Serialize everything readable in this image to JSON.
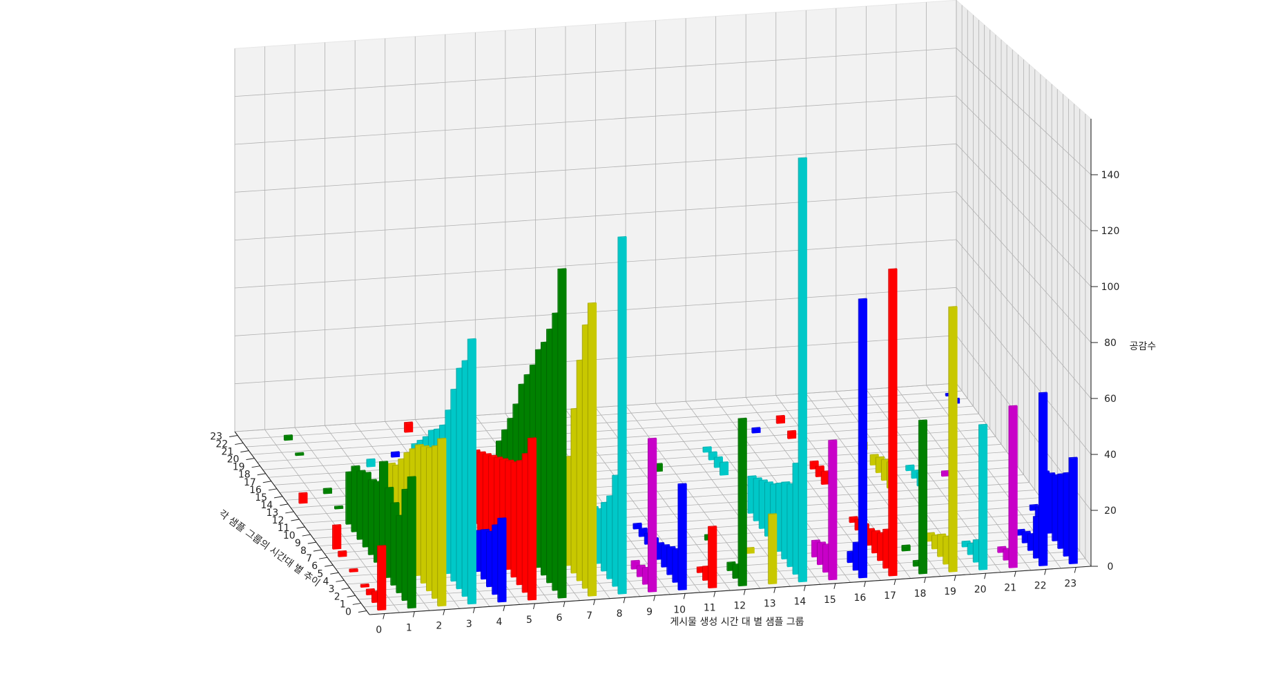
{
  "chart_data": {
    "type": "bar3d",
    "title": "",
    "xlabel": "게시물 생성 시간 대 별 샘플 그룹",
    "ylabel": "각 샘플 그룹의 시간대 별 추이",
    "zlabel": "공감수",
    "x_ticks": [
      "0",
      "1",
      "2",
      "3",
      "4",
      "5",
      "6",
      "7",
      "8",
      "9",
      "10",
      "11",
      "12",
      "13",
      "14",
      "15",
      "16",
      "17",
      "18",
      "19",
      "20",
      "21",
      "22",
      "23"
    ],
    "y_ticks": [
      "0",
      "1",
      "2",
      "3",
      "4",
      "5",
      "6",
      "7",
      "8",
      "9",
      "10",
      "11",
      "12",
      "13",
      "14",
      "15",
      "16",
      "17",
      "18",
      "19",
      "20",
      "21",
      "22",
      "23"
    ],
    "z_ticks": [
      "0",
      "20",
      "40",
      "60",
      "80",
      "100",
      "120",
      "140"
    ],
    "zlim": [
      0,
      160
    ],
    "grid": true,
    "series_colors": [
      "#ff0000",
      "#008000",
      "#c8c800",
      "#00c8c8",
      "#0000ff",
      "#c800c8"
    ],
    "series": [
      {
        "x": 0,
        "color": "#ff0000",
        "values": [
          23,
          4,
          2,
          1,
          0,
          1,
          0,
          2,
          9,
          0,
          0,
          0,
          0,
          0,
          4,
          0,
          0,
          0,
          0,
          0,
          0,
          0,
          0,
          0
        ]
      },
      {
        "x": 1,
        "color": "#008000",
        "values": [
          47,
          40,
          28,
          30,
          33,
          40,
          30,
          28,
          28,
          26,
          25,
          20,
          0,
          1,
          0,
          2,
          0,
          0,
          0,
          0,
          1,
          0,
          2,
          0
        ]
      },
      {
        "x": 2,
        "color": "#c8c800",
        "values": [
          60,
          55,
          52,
          50,
          48,
          44,
          40,
          35,
          30,
          28,
          8,
          6,
          4,
          3,
          2,
          0,
          0,
          0,
          0,
          0,
          0,
          0,
          0,
          0
        ]
      },
      {
        "x": 3,
        "color": "#00c8c8",
        "values": [
          95,
          85,
          80,
          70,
          60,
          52,
          48,
          45,
          40,
          36,
          32,
          10,
          8,
          5,
          4,
          2,
          0,
          0,
          3,
          0,
          0,
          0,
          0,
          0
        ]
      },
      {
        "x": 4,
        "color": "#0000ff",
        "values": [
          30,
          25,
          20,
          18,
          15,
          12,
          10,
          8,
          6,
          5,
          0,
          0,
          0,
          0,
          0,
          0,
          3,
          0,
          0,
          2,
          0,
          0,
          0,
          0
        ]
      },
      {
        "x": 5,
        "color": "#ff0000",
        "values": [
          58,
          50,
          45,
          42,
          40,
          38,
          36,
          34,
          32,
          30,
          28,
          26,
          24,
          22,
          20,
          18,
          4,
          0,
          3,
          0,
          0,
          0,
          4,
          0
        ]
      },
      {
        "x": 6,
        "color": "#008000",
        "values": [
          118,
          100,
          92,
          85,
          80,
          72,
          66,
          60,
          50,
          42,
          35,
          28,
          0,
          0,
          2,
          0,
          3,
          0,
          0,
          2,
          0,
          0,
          0,
          0
        ]
      },
      {
        "x": 7,
        "color": "#c8c800",
        "values": [
          105,
          95,
          80,
          60,
          40,
          20,
          10,
          6,
          4,
          2,
          0,
          0,
          0,
          0,
          0,
          0,
          0,
          0,
          0,
          0,
          0,
          0,
          0,
          0
        ]
      },
      {
        "x": 8,
        "color": "#00c8c8",
        "values": [
          128,
          40,
          30,
          25,
          20,
          18,
          15,
          12,
          8,
          6,
          4,
          2,
          0,
          1,
          0,
          2,
          0,
          0,
          0,
          0,
          0,
          0,
          0,
          0
        ]
      },
      {
        "x": 9,
        "color": "#c800c8",
        "values": [
          55,
          6,
          4,
          3,
          0,
          0,
          0,
          0,
          0,
          0,
          0,
          0,
          0,
          0,
          0,
          0,
          0,
          0,
          0,
          0,
          0,
          0,
          0,
          0
        ]
      },
      {
        "x": 10,
        "color": "#0000ff",
        "values": [
          38,
          12,
          10,
          8,
          6,
          5,
          4,
          3,
          2,
          0,
          0,
          0,
          0,
          0,
          0,
          0,
          0,
          0,
          0,
          0,
          0,
          0,
          0,
          0
        ]
      },
      {
        "x": 11,
        "color": "#ff0000",
        "values": [
          22,
          5,
          2,
          0,
          0,
          0,
          0,
          0,
          0,
          0,
          0,
          0,
          0,
          0,
          0,
          0,
          0,
          0,
          0,
          0,
          0,
          0,
          0,
          0
        ]
      },
      {
        "x": 12,
        "color": "#008000",
        "values": [
          60,
          5,
          3,
          0,
          0,
          0,
          2,
          0,
          0,
          0,
          0,
          0,
          0,
          0,
          0,
          3,
          0,
          0,
          0,
          0,
          0,
          0,
          0,
          0
        ]
      },
      {
        "x": 13,
        "color": "#c8c800",
        "values": [
          25,
          0,
          0,
          0,
          2,
          0,
          0,
          0,
          0,
          0,
          0,
          0,
          0,
          0,
          0,
          0,
          0,
          0,
          0,
          0,
          0,
          0,
          0,
          0
        ]
      },
      {
        "x": 14,
        "color": "#00c8c8",
        "values": [
          152,
          40,
          30,
          28,
          25,
          22,
          20,
          18,
          16,
          14,
          0,
          0,
          0,
          0,
          5,
          4,
          3,
          2,
          0,
          0,
          0,
          0,
          0,
          0
        ]
      },
      {
        "x": 15,
        "color": "#c800c8",
        "values": [
          50,
          10,
          8,
          6,
          0,
          0,
          0,
          0,
          0,
          0,
          0,
          0,
          0,
          0,
          0,
          0,
          0,
          0,
          0,
          0,
          0,
          0,
          0,
          0
        ]
      },
      {
        "x": 16,
        "color": "#0000ff",
        "values": [
          100,
          10,
          4,
          0,
          0,
          0,
          0,
          0,
          0,
          0,
          0,
          0,
          0,
          0,
          0,
          0,
          0,
          0,
          0,
          2,
          0,
          0,
          0,
          0
        ]
      },
      {
        "x": 17,
        "color": "#ff0000",
        "values": [
          110,
          14,
          10,
          8,
          6,
          5,
          4,
          2,
          0,
          0,
          0,
          0,
          5,
          4,
          3,
          0,
          0,
          0,
          3,
          0,
          3,
          0,
          0,
          0
        ]
      },
      {
        "x": 18,
        "color": "#008000",
        "values": [
          55,
          2,
          0,
          2,
          0,
          0,
          0,
          0,
          0,
          0,
          0,
          0,
          0,
          0,
          0,
          0,
          0,
          0,
          0,
          0,
          0,
          0,
          0,
          0
        ]
      },
      {
        "x": 19,
        "color": "#c8c800",
        "values": [
          95,
          10,
          8,
          5,
          3,
          0,
          0,
          0,
          0,
          0,
          0,
          10,
          8,
          6,
          4,
          0,
          3,
          0,
          0,
          0,
          0,
          0,
          0,
          0
        ]
      },
      {
        "x": 20,
        "color": "#00c8c8",
        "values": [
          52,
          8,
          4,
          2,
          0,
          0,
          0,
          0,
          0,
          0,
          0,
          5,
          3,
          2,
          0,
          0,
          0,
          0,
          0,
          0,
          0,
          0,
          0,
          0
        ]
      },
      {
        "x": 21,
        "color": "#c800c8",
        "values": [
          58,
          4,
          2,
          0,
          0,
          0,
          0,
          0,
          0,
          0,
          0,
          0,
          2,
          0,
          0,
          0,
          0,
          0,
          0,
          0,
          0,
          0,
          0,
          0
        ]
      },
      {
        "x": 22,
        "color": "#0000ff",
        "values": [
          62,
          15,
          6,
          4,
          2,
          0,
          0,
          0,
          0,
          0,
          0,
          0,
          0,
          0,
          0,
          0,
          0,
          0,
          0,
          0,
          0,
          0,
          0,
          0
        ]
      },
      {
        "x": 23,
        "color": "#0000ff",
        "values": [
          38,
          30,
          27,
          24,
          22,
          20,
          4,
          2,
          0,
          0,
          0,
          0,
          0,
          0,
          0,
          0,
          0,
          0,
          0,
          0,
          0,
          2,
          1,
          0
        ]
      }
    ]
  }
}
